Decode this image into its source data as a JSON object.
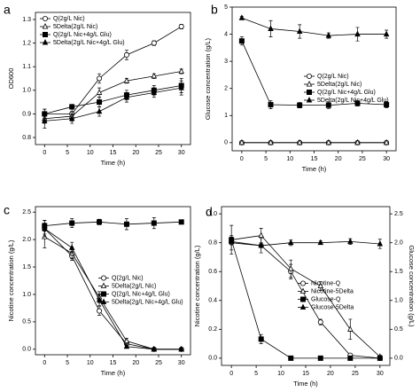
{
  "chart_data": [
    {
      "type": "line",
      "panel": "a",
      "x_label": "Time (h)",
      "y_label": "OD600",
      "x": [
        0,
        6,
        12,
        18,
        24,
        30
      ],
      "xlim": [
        -2,
        32
      ],
      "xticks": [
        0,
        5,
        10,
        15,
        20,
        25,
        30
      ],
      "ylim": [
        0.77,
        1.33
      ],
      "yticks": [
        {
          "value": 0.8,
          "label": "0.8"
        },
        {
          "value": 0.9,
          "label": "0.9"
        },
        {
          "value": 1.0,
          "label": "1.0"
        },
        {
          "value": 1.1,
          "label": "1.1"
        },
        {
          "value": 1.2,
          "label": "1.2"
        },
        {
          "value": 1.3,
          "label": "1.3"
        }
      ],
      "legend": "upper left",
      "series": [
        {
          "name": "Q(2g/L Nic)",
          "color": "#000000",
          "marker": "circle-open",
          "values": [
            0.9,
            0.9,
            1.05,
            1.15,
            1.2,
            1.27
          ],
          "errors": [
            0.02,
            0.02,
            0.02,
            0.02,
            0.01,
            0.01
          ]
        },
        {
          "name": "5Delta(2g/L Nic)",
          "color": "#000000",
          "marker": "triangle-open",
          "values": [
            0.88,
            0.89,
            0.99,
            1.04,
            1.06,
            1.08
          ],
          "errors": [
            0.02,
            0.02,
            0.02,
            0.01,
            0.01,
            0.01
          ]
        },
        {
          "name": "Q(2g/L Nic+4g/L Glu)",
          "color": "#000000",
          "marker": "square",
          "values": [
            0.9,
            0.93,
            0.95,
            0.98,
            1.0,
            1.02
          ],
          "errors": [
            0.02,
            0.01,
            0.02,
            0.02,
            0.02,
            0.03
          ]
        },
        {
          "name": "5Delta(2g/L Nic+4g/L Glu)",
          "color": "#000000",
          "marker": "triangle",
          "values": [
            0.87,
            0.88,
            0.91,
            0.97,
            0.99,
            1.01
          ],
          "errors": [
            0.03,
            0.02,
            0.02,
            0.02,
            0.02,
            0.03
          ]
        }
      ]
    },
    {
      "type": "line",
      "panel": "b",
      "x_label": "Time (h)",
      "y_label": "Glucose concentration (g/L)",
      "x": [
        0,
        6,
        12,
        18,
        24,
        30
      ],
      "xlim": [
        -2,
        32
      ],
      "xticks": [
        0,
        5,
        10,
        15,
        20,
        25,
        30
      ],
      "ylim": [
        -0.3,
        5
      ],
      "yticks": [
        0,
        1,
        2,
        3,
        4,
        5
      ],
      "legend": "center right",
      "series": [
        {
          "name": "Q(2g/L Nic)",
          "color": "#000000",
          "marker": "circle-open",
          "values": [
            0,
            0,
            0,
            0,
            0,
            0
          ],
          "errors": [
            0,
            0,
            0,
            0,
            0,
            0
          ]
        },
        {
          "name": "5Delta(2g/L Nic)",
          "color": "#000000",
          "marker": "triangle-open",
          "values": [
            0,
            0,
            0,
            0,
            0,
            0
          ],
          "errors": [
            0,
            0,
            0,
            0,
            0,
            0
          ]
        },
        {
          "name": "Q(2g/L Nic+4g/L Glu)",
          "color": "#000000",
          "marker": "square",
          "values": [
            3.75,
            1.4,
            1.38,
            1.38,
            1.45,
            1.4
          ],
          "errors": [
            0.15,
            0.15,
            0.1,
            0.12,
            0.1,
            0.12
          ]
        },
        {
          "name": "5Delta(2g/L Nic+4g/L Glu)",
          "color": "#000000",
          "marker": "triangle",
          "values": [
            4.6,
            4.2,
            4.1,
            3.95,
            4.0,
            4.0
          ],
          "errors": [
            0.05,
            0.3,
            0.25,
            0.1,
            0.25,
            0.15
          ]
        }
      ]
    },
    {
      "type": "line",
      "panel": "c",
      "x_label": "Time (h)",
      "y_label": "Nicotine concentration (g/L)",
      "x": [
        0,
        6,
        12,
        18,
        24,
        30
      ],
      "xlim": [
        -2,
        32
      ],
      "xticks": [
        0,
        5,
        10,
        15,
        20,
        25,
        30
      ],
      "ylim": [
        -0.1,
        2.6
      ],
      "yticks": [
        {
          "value": 0,
          "label": "0.0"
        },
        0.5,
        {
          "value": 1,
          "label": "1.0"
        },
        1.5,
        {
          "value": 2,
          "label": "2.0"
        },
        2.5
      ],
      "legend": "center right",
      "series": [
        {
          "name": "Q(2g/L Nic)",
          "color": "#000000",
          "marker": "circle-open",
          "values": [
            2.2,
            1.7,
            0.7,
            0.1,
            0,
            0
          ],
          "errors": [
            0.1,
            0.08,
            0.08,
            0.05,
            0.02,
            0.02
          ]
        },
        {
          "name": "5Delta(2g/L Nic)",
          "color": "#000000",
          "marker": "triangle-open",
          "values": [
            2.05,
            1.75,
            0.95,
            0.15,
            0,
            0
          ],
          "errors": [
            0.2,
            0.1,
            0.1,
            0.05,
            0.02,
            0.02
          ]
        },
        {
          "name": "Q(2g/L Nic+4g/L Glu)",
          "color": "#000000",
          "marker": "square",
          "values": [
            2.25,
            2.3,
            2.32,
            2.28,
            2.3,
            2.32
          ],
          "errors": [
            0.1,
            0.08,
            0.05,
            0.1,
            0.1,
            0.02
          ]
        },
        {
          "name": "5Delta(2g/L Nic+4g/L Glu)",
          "color": "#000000",
          "marker": "triangle",
          "values": [
            2.2,
            1.85,
            0.9,
            0.05,
            0,
            0
          ],
          "errors": [
            0.15,
            0.1,
            0.1,
            0.03,
            0.02,
            0.02
          ]
        }
      ]
    },
    {
      "type": "line",
      "panel": "d",
      "x_label": "Time (h)",
      "y_label": "Nicotine concentration (g/L)",
      "y2_label": "Glucose concentration (g/L)",
      "x": [
        0,
        6,
        12,
        18,
        24,
        30
      ],
      "xlim": [
        -2,
        32
      ],
      "xticks": [
        0,
        5,
        10,
        15,
        20,
        25,
        30
      ],
      "ylim": [
        -0.05,
        1.05
      ],
      "yticks": [
        {
          "value": 0,
          "label": "0.0"
        },
        0.2,
        0.4,
        0.6,
        0.8,
        {
          "value": 1,
          "label": "1.0"
        }
      ],
      "y2lim": [
        -0.125,
        2.625
      ],
      "y2ticks": [
        {
          "value": 0,
          "label": "0.0"
        },
        0.5,
        {
          "value": 1,
          "label": "1.0"
        },
        1.5,
        {
          "value": 2,
          "label": "2.0"
        },
        2.5
      ],
      "legend": "center right",
      "series": [
        {
          "name": "Nicotine-Q",
          "color": "#000000",
          "marker": "circle-open",
          "values": [
            0.8,
            0.78,
            0.6,
            0.25,
            0.02,
            0
          ],
          "errors": [
            0.05,
            0.05,
            0.05,
            0.02,
            0.01,
            0.01
          ]
        },
        {
          "name": "Nicotine-5Delta",
          "color": "#000000",
          "marker": "triangle-open",
          "values": [
            0.82,
            0.85,
            0.62,
            0.5,
            0.2,
            0.01
          ],
          "errors": [
            0.1,
            0.05,
            0.06,
            0.03,
            0.07,
            0.01
          ]
        },
        {
          "name": "Glucose-Q",
          "color": "#000000",
          "marker": "square",
          "axis": "y2",
          "values": [
            2.05,
            0.33,
            0,
            0,
            0,
            0
          ],
          "errors": [
            0.05,
            0.08,
            0.02,
            0.02,
            0.02,
            0.02
          ]
        },
        {
          "name": "Glucose-5Delta",
          "color": "#000000",
          "marker": "triangle",
          "axis": "y2",
          "values": [
            2.02,
            1.95,
            2.0,
            2.0,
            2.02,
            1.98
          ],
          "errors": [
            0.05,
            0.03,
            0.05,
            0.03,
            0.05,
            0.08
          ]
        }
      ]
    }
  ]
}
